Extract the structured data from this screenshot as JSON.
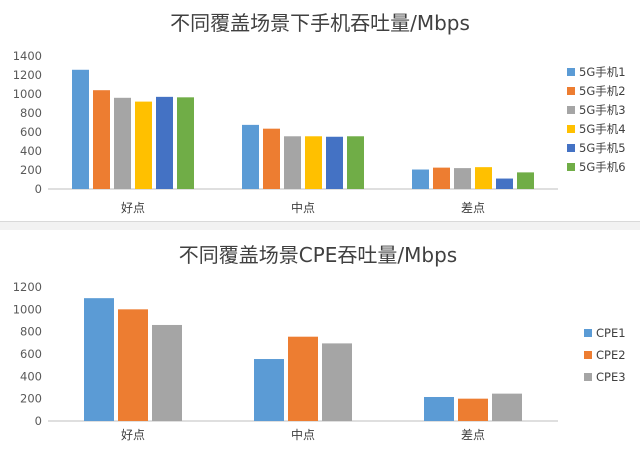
{
  "charts": [
    {
      "title": "不同覆盖场景下手机吞吐量/Mbps",
      "chart_data": {
        "type": "bar",
        "title": "不同覆盖场景下手机吞吐量/Mbps",
        "categories": [
          "好点",
          "中点",
          "差点"
        ],
        "ylim": [
          0,
          1400
        ],
        "yticks": [
          0,
          200,
          400,
          600,
          800,
          1000,
          1200,
          1400
        ],
        "legend_position": "right",
        "series": [
          {
            "name": "5G手机1",
            "color": "#5b9bd5",
            "values": [
              1255,
              675,
              205
            ]
          },
          {
            "name": "5G手机2",
            "color": "#ed7d31",
            "values": [
              1040,
              635,
              225
            ]
          },
          {
            "name": "5G手机3",
            "color": "#a5a5a5",
            "values": [
              960,
              555,
              220
            ]
          },
          {
            "name": "5G手机4",
            "color": "#ffc000",
            "values": [
              920,
              555,
              230
            ]
          },
          {
            "name": "5G手机5",
            "color": "#4472c4",
            "values": [
              970,
              550,
              110
            ]
          },
          {
            "name": "5G手机6",
            "color": "#70ad47",
            "values": [
              965,
              555,
              175
            ]
          }
        ]
      }
    },
    {
      "title": "不同覆盖场景CPE吞吐量/Mbps",
      "chart_data": {
        "type": "bar",
        "title": "不同覆盖场景CPE吞吐量/Mbps",
        "categories": [
          "好点",
          "中点",
          "差点"
        ],
        "ylim": [
          0,
          1200
        ],
        "yticks": [
          0,
          200,
          400,
          600,
          800,
          1000,
          1200
        ],
        "legend_position": "right",
        "series": [
          {
            "name": "CPE1",
            "color": "#5b9bd5",
            "values": [
              1100,
              555,
              215
            ]
          },
          {
            "name": "CPE2",
            "color": "#ed7d31",
            "values": [
              1000,
              755,
              200
            ]
          },
          {
            "name": "CPE3",
            "color": "#a5a5a5",
            "values": [
              860,
              695,
              245
            ]
          }
        ]
      }
    }
  ]
}
